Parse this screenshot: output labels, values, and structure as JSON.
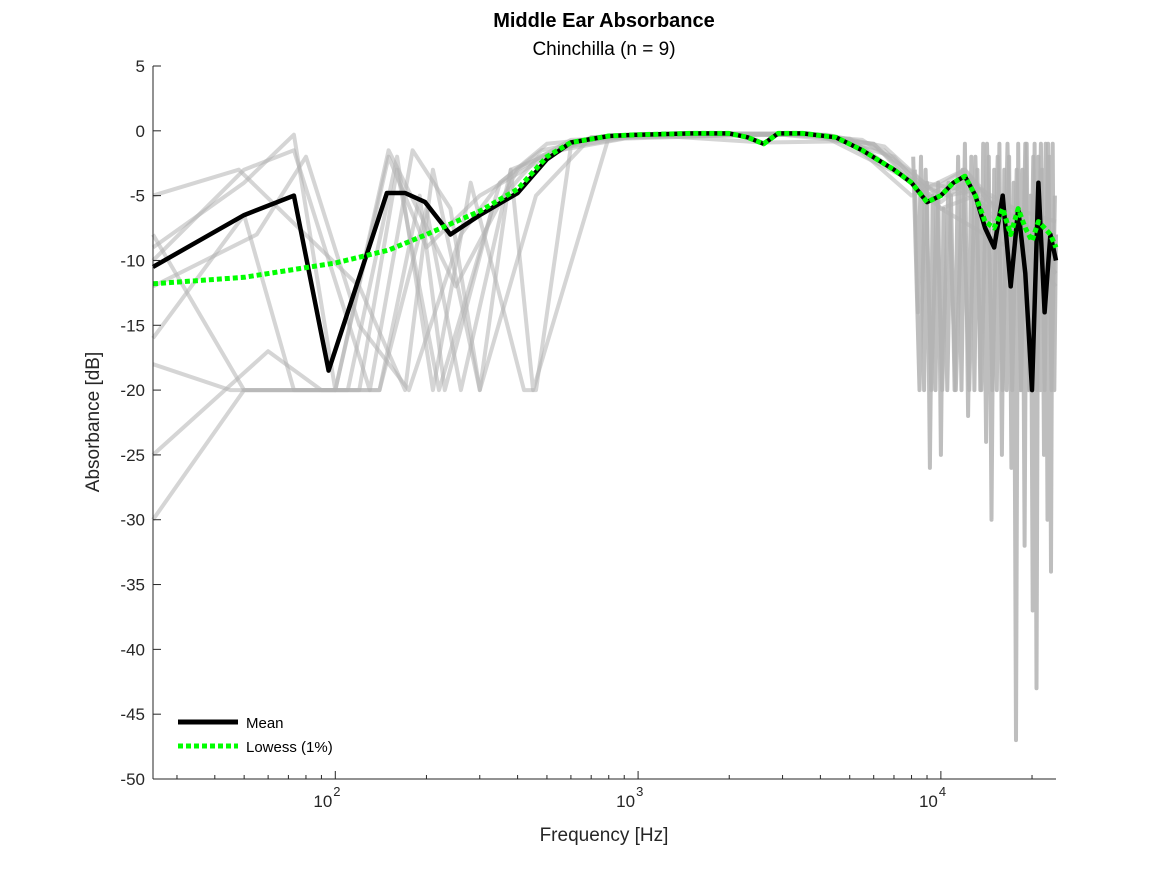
{
  "chart_data": {
    "type": "line",
    "title": "Middle Ear Absorbance",
    "subtitle": "Chinchilla (n = 9)",
    "xlabel": "Frequency [Hz]",
    "ylabel": "Absorbance [dB]",
    "xscale": "log",
    "xlim": [
      25,
      24000
    ],
    "ylim": [
      -50,
      5
    ],
    "x_ticks": [
      {
        "value": 100,
        "base": "10",
        "exp": "2"
      },
      {
        "value": 1000,
        "base": "10",
        "exp": "3"
      },
      {
        "value": 10000,
        "base": "10",
        "exp": "4"
      }
    ],
    "y_ticks": [
      "5",
      "0",
      "-5",
      "-10",
      "-15",
      "-20",
      "-25",
      "-30",
      "-35",
      "-40",
      "-45",
      "-50"
    ],
    "legend_position": "bottom-left",
    "colors": {
      "individual": "#b3b3b3",
      "mean": "#000000",
      "lowess": "#00ff00"
    },
    "series": [
      {
        "name": "Mean",
        "x": [
          25,
          50,
          73,
          95,
          148,
          170,
          198,
          240,
          300,
          400,
          500,
          600,
          800,
          1000,
          1500,
          2000,
          2300,
          2600,
          2900,
          3500,
          4500,
          5500,
          7000,
          8000,
          9000,
          10000,
          11000,
          12000,
          13000,
          14000,
          15000,
          16000,
          17000,
          18000,
          19000,
          20000,
          21000,
          22000,
          23000,
          24000
        ],
        "y": [
          -10.5,
          -6.5,
          -5,
          -18.5,
          -4.8,
          -4.8,
          -5.5,
          -8,
          -6.5,
          -4.8,
          -2.2,
          -0.9,
          -0.4,
          -0.3,
          -0.2,
          -0.2,
          -0.5,
          -1,
          -0.2,
          -0.2,
          -0.5,
          -1.5,
          -3,
          -4,
          -5.5,
          -5,
          -4,
          -3.5,
          -5,
          -7.5,
          -9,
          -5,
          -12,
          -6,
          -11,
          -20,
          -4,
          -14,
          -8,
          -10
        ]
      },
      {
        "name": "Lowess (1%)",
        "x": [
          25,
          50,
          100,
          150,
          200,
          250,
          300,
          400,
          500,
          600,
          800,
          1000,
          1500,
          2000,
          2300,
          2600,
          2900,
          3500,
          4500,
          5500,
          7000,
          8000,
          9000,
          10000,
          11000,
          12000,
          13000,
          14000,
          15000,
          16000,
          17000,
          18000,
          19000,
          20000,
          21000,
          22000,
          23000,
          24000
        ],
        "y": [
          -11.8,
          -11.3,
          -10.2,
          -9.2,
          -8,
          -7,
          -6.2,
          -4.5,
          -2,
          -0.9,
          -0.4,
          -0.3,
          -0.2,
          -0.2,
          -0.5,
          -1,
          -0.2,
          -0.2,
          -0.5,
          -1.5,
          -3,
          -4,
          -5.5,
          -5,
          -4,
          -3.5,
          -5,
          -7,
          -7.5,
          -6,
          -8,
          -6,
          -7.5,
          -8.5,
          -7,
          -7.5,
          -8,
          -9
        ]
      }
    ],
    "individual_traces": [
      {
        "x": [
          25,
          50,
          73,
          100,
          150,
          200,
          300,
          500,
          700,
          1000,
          2000,
          3000,
          5000,
          7000,
          9000,
          10000,
          12000,
          15000,
          20000,
          24000
        ],
        "y": [
          -9,
          -4,
          -0.3,
          -20,
          -2,
          -9,
          -5,
          -2,
          -0.5,
          -0.3,
          -0.2,
          -0.3,
          -0.6,
          -3,
          -5,
          -5.5,
          -4,
          -7,
          -9,
          -10
        ]
      },
      {
        "x": [
          25,
          50,
          73,
          100,
          150,
          250,
          400,
          600,
          1000,
          3000,
          6000,
          8000,
          10000,
          14000,
          20000,
          24000
        ],
        "y": [
          -16,
          -6.5,
          -20,
          -20,
          -1.5,
          -12,
          -3,
          -0.7,
          -0.5,
          -0.3,
          -1,
          -4,
          -6,
          -8,
          -10,
          -12
        ]
      },
      {
        "x": [
          25,
          45,
          73,
          95,
          120,
          160,
          220,
          350,
          500,
          900,
          2000,
          4000,
          7000,
          9000,
          11000,
          16000,
          21000,
          24000
        ],
        "y": [
          -18,
          -20,
          -20,
          -20,
          -20,
          -3,
          -20,
          -4,
          -1,
          -0.4,
          -0.3,
          -0.3,
          -2,
          -5,
          -4,
          -6,
          -8,
          -9
        ]
      },
      {
        "x": [
          25,
          50,
          73,
          100,
          140,
          200,
          260,
          380,
          450,
          800,
          1500,
          3500,
          6500,
          8500,
          10000,
          13000,
          18000,
          24000
        ],
        "y": [
          -30,
          -20,
          -20,
          -20,
          -20,
          -6,
          -20,
          -3,
          -20,
          -0.5,
          -0.3,
          -0.2,
          -1.5,
          -4,
          -6,
          -5,
          -9,
          -10
        ]
      },
      {
        "x": [
          25,
          50,
          73,
          130,
          180,
          240,
          300,
          460,
          700,
          1200,
          2600,
          5000,
          8000,
          12000,
          17000,
          24000
        ],
        "y": [
          -10,
          -3,
          -1.5,
          -20,
          -1.5,
          -6,
          -20,
          -5,
          -0.5,
          -0.4,
          -0.9,
          -0.8,
          -5,
          -3,
          -7,
          -11
        ]
      },
      {
        "x": [
          25,
          50,
          73,
          110,
          160,
          210,
          280,
          420,
          460,
          600,
          1000,
          2000,
          4000,
          7500,
          9500,
          12000,
          15000,
          19000,
          24000
        ],
        "y": [
          -8,
          -20,
          -20,
          -20,
          -2,
          -20,
          -4,
          -20,
          -20,
          -1.2,
          -0.4,
          -0.2,
          -0.3,
          -3.5,
          -4.5,
          -3,
          -6,
          -10,
          -8
        ]
      },
      {
        "x": [
          25,
          60,
          90,
          140,
          190,
          230,
          330,
          470,
          650,
          1100,
          2200,
          3300,
          6000,
          8200,
          10500,
          13500,
          17500,
          24000
        ],
        "y": [
          -25,
          -17,
          -20,
          -20,
          -5,
          -20,
          -6,
          -2,
          -0.8,
          -0.3,
          -0.2,
          -0.2,
          -1,
          -4,
          -5,
          -4.5,
          -6,
          -7
        ]
      },
      {
        "x": [
          25,
          48,
          72,
          120,
          170,
          210,
          300,
          380,
          550,
          900,
          1800,
          3000,
          5500,
          7800,
          9800,
          12500,
          16500,
          22000,
          24000
        ],
        "y": [
          -5,
          -3,
          -7,
          -12,
          -20,
          -3,
          -20,
          -3,
          -1.5,
          -0.6,
          -0.4,
          -0.2,
          -0.7,
          -3,
          -5,
          -3.8,
          -7,
          -9,
          -10
        ]
      },
      {
        "x": [
          25,
          55,
          80,
          120,
          175,
          260,
          350,
          480,
          750,
          1300,
          2500,
          4200,
          6500,
          8800,
          11500,
          14500,
          19500,
          24000
        ],
        "y": [
          -12,
          -8,
          -2,
          -15,
          -20,
          -8,
          -4,
          -1.5,
          -0.6,
          -0.4,
          -0.3,
          -0.3,
          -1.2,
          -4,
          -4.5,
          -6,
          -9,
          -11
        ]
      }
    ],
    "noise_traces": [
      {
        "x": [
          8200,
          8400,
          8600,
          8800,
          9000,
          9200,
          9400,
          9600,
          9800,
          10000,
          10200,
          10500,
          10800,
          11100,
          11400,
          11700,
          12000,
          12300,
          12600,
          12900,
          13200,
          13500,
          13800,
          14100,
          14400,
          14700,
          15000,
          15300,
          15600,
          15900,
          16200,
          16500,
          16800,
          17100,
          17400,
          17700,
          18000,
          18300,
          18600,
          18900,
          19200,
          19500,
          19800,
          20100,
          20400,
          20700,
          21000,
          21300,
          21600,
          21900,
          22200,
          22500,
          22800,
          23100,
          23400,
          23700,
          24000
        ],
        "y": [
          -3,
          -14,
          -2,
          -20,
          -4,
          -26,
          -5,
          -20,
          -4,
          -25,
          -6,
          -20,
          -5,
          -20,
          -2,
          -20,
          -1,
          -22,
          -2,
          -20,
          -3,
          -20,
          -1,
          -24,
          -2,
          -30,
          -3,
          -20,
          -1,
          -25,
          -3,
          -20,
          -2,
          -26,
          -4,
          -47,
          -1,
          -20,
          -3,
          -32,
          -1,
          -20,
          -5,
          -37,
          -1,
          -43,
          -2,
          -20,
          -3,
          -25,
          -1,
          -30,
          -2,
          -34,
          -1,
          -20,
          -8
        ]
      },
      {
        "x": [
          8100,
          8500,
          8900,
          9300,
          9700,
          10100,
          10600,
          11200,
          11800,
          12400,
          13000,
          13600,
          14200,
          14800,
          15400,
          16000,
          16600,
          17200,
          17800,
          18400,
          19000,
          19600,
          20200,
          20800,
          21400,
          22000,
          22600,
          23200,
          23800
        ],
        "y": [
          -2,
          -20,
          -3,
          -20,
          -5,
          -20,
          -4,
          -20,
          -3,
          -20,
          -2,
          -20,
          -1,
          -20,
          -2,
          -20,
          -1,
          -20,
          -3,
          -20,
          -1,
          -20,
          -2,
          -20,
          -1,
          -20,
          -1,
          -20,
          -5
        ]
      }
    ]
  }
}
